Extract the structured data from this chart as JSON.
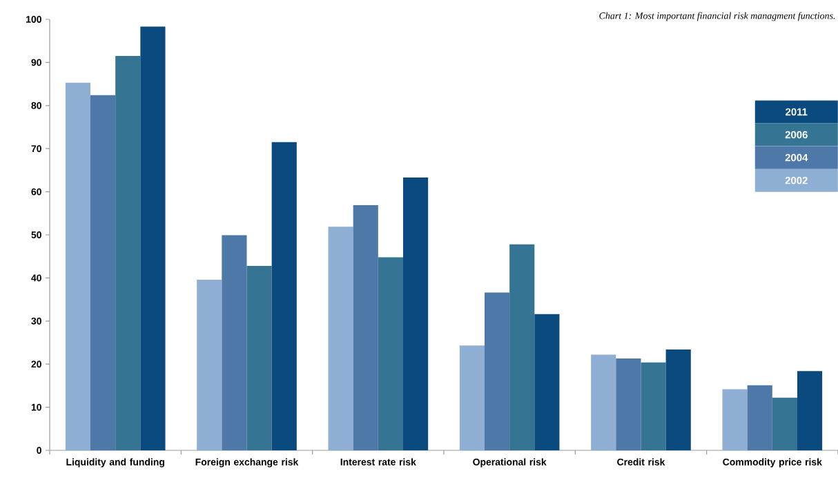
{
  "chart_data": {
    "type": "bar",
    "title": "Chart 1: Most important financial risk managment functions.",
    "categories": [
      "Liquidity and funding",
      "Foreign exchange risk",
      "Interest rate risk",
      "Operational risk",
      "Credit risk",
      "Commodity price risk"
    ],
    "series": [
      {
        "name": "2002",
        "color": "#8faed4",
        "values": [
          85.3,
          39.6,
          51.9,
          24.3,
          22.2,
          14.2
        ]
      },
      {
        "name": "2004",
        "color": "#4d78a8",
        "values": [
          82.4,
          49.9,
          56.9,
          36.6,
          21.3,
          15.1
        ]
      },
      {
        "name": "2006",
        "color": "#357492",
        "values": [
          91.5,
          42.8,
          44.8,
          47.8,
          20.4,
          12.2
        ]
      },
      {
        "name": "2011",
        "color": "#0a4a7e",
        "values": [
          98.3,
          71.5,
          63.3,
          31.6,
          23.4,
          18.4
        ]
      }
    ],
    "ylim": [
      0,
      100
    ],
    "yticks": [
      0,
      10,
      20,
      30,
      40,
      50,
      60,
      70,
      80,
      90,
      100
    ],
    "legend": "right"
  }
}
